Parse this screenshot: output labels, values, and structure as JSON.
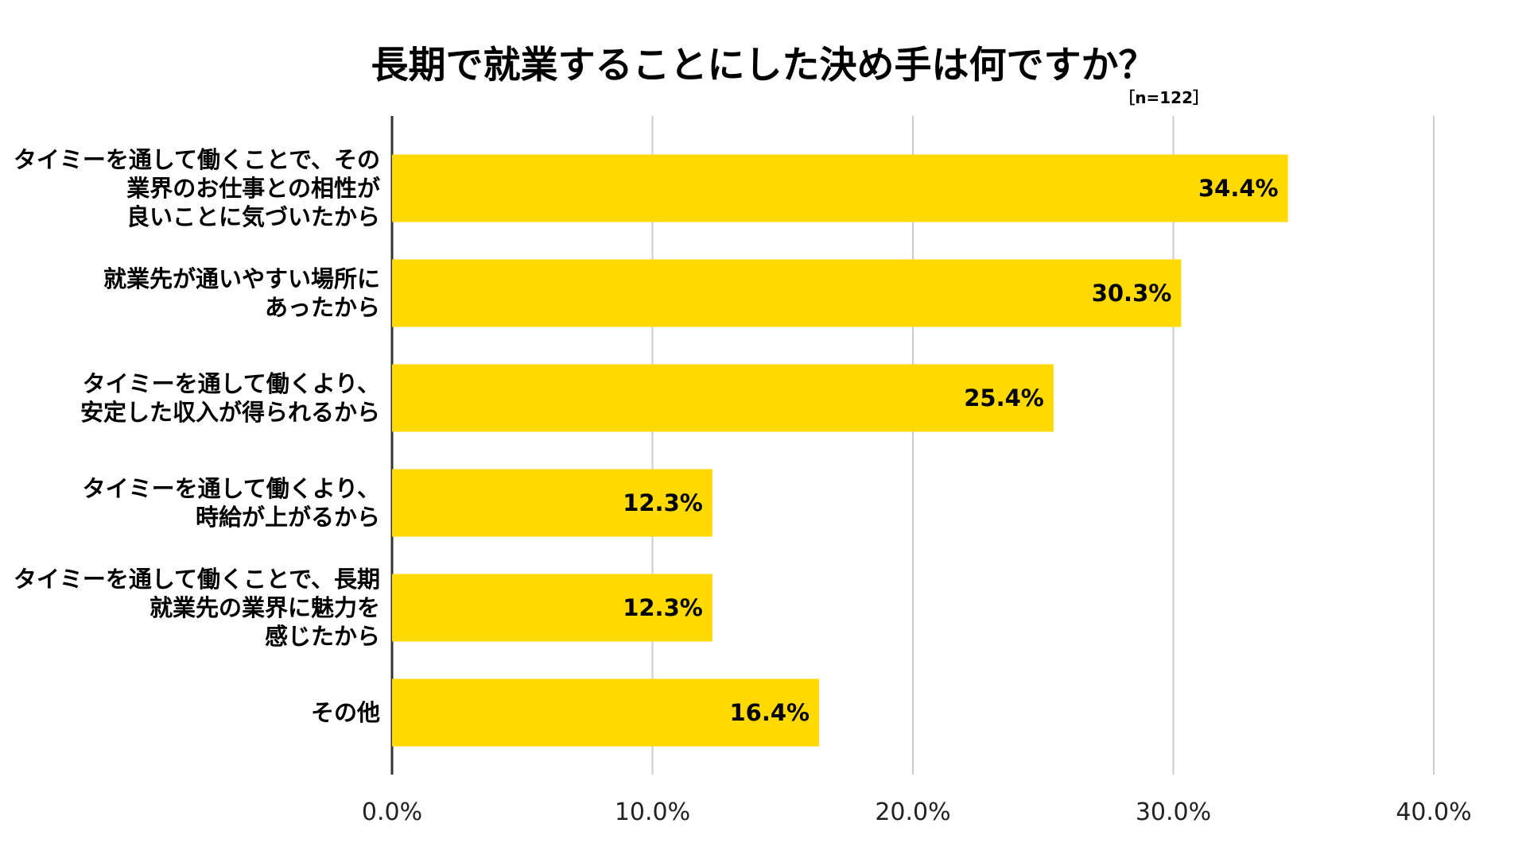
{
  "chart_data": {
    "type": "bar",
    "orientation": "horizontal",
    "title": "長期で就業することにした決め手は何ですか？",
    "note": "［n=122］",
    "categories": [
      [
        "タイミーを通して働くことで、その",
        "業界のお仕事との相性が",
        "良いことに気づいたから"
      ],
      [
        "就業先が通いやすい場所に",
        "あったから"
      ],
      [
        "タイミーを通して働くより、",
        "安定した収入が得られるから"
      ],
      [
        "タイミーを通して働くより、",
        "時給が上がるから"
      ],
      [
        "タイミーを通して働くことで、長期",
        "就業先の業界に魅力を",
        "感じたから"
      ],
      [
        "その他"
      ]
    ],
    "values": [
      34.4,
      30.3,
      25.4,
      12.3,
      12.3,
      16.4
    ],
    "value_labels": [
      "34.4%",
      "30.3%",
      "25.4%",
      "12.3%",
      "12.3%",
      "16.4%"
    ],
    "xlim": [
      0,
      40
    ],
    "xticks": [
      0,
      10,
      20,
      30,
      40
    ],
    "xtick_labels": [
      "0.0%",
      "10.0%",
      "20.0%",
      "30.0%",
      "40.0%"
    ],
    "grid": "vertical",
    "colors": {
      "bar": "#FFD900",
      "grid": "#cccccc",
      "axis": "#333333",
      "text": "#000000"
    }
  }
}
